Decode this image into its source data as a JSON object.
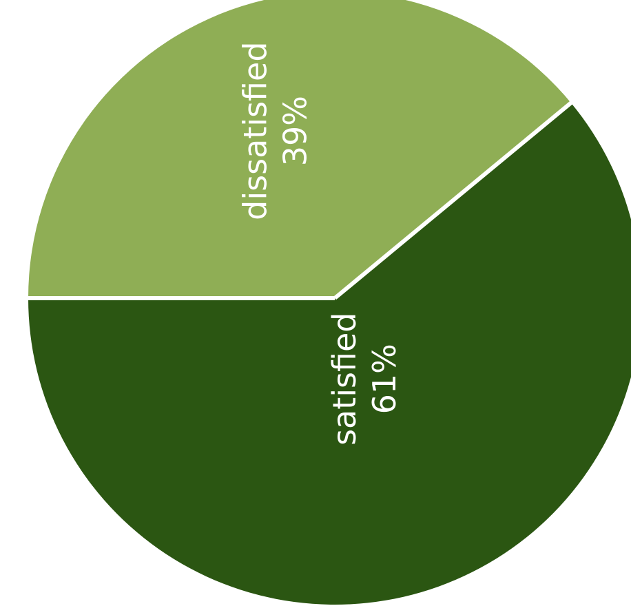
{
  "chart_data": {
    "type": "pie",
    "slices": [
      {
        "label": "satisfied",
        "value": 61,
        "value_label": "61%",
        "color": "#2b5612"
      },
      {
        "label": "dissatisfied",
        "value": 39,
        "value_label": "39%",
        "color": "#8fae55"
      }
    ],
    "separator_color": "#ffffff",
    "label_color": "#ffffff",
    "label_orientation": "rotated-90-ccw",
    "legend": "none"
  }
}
